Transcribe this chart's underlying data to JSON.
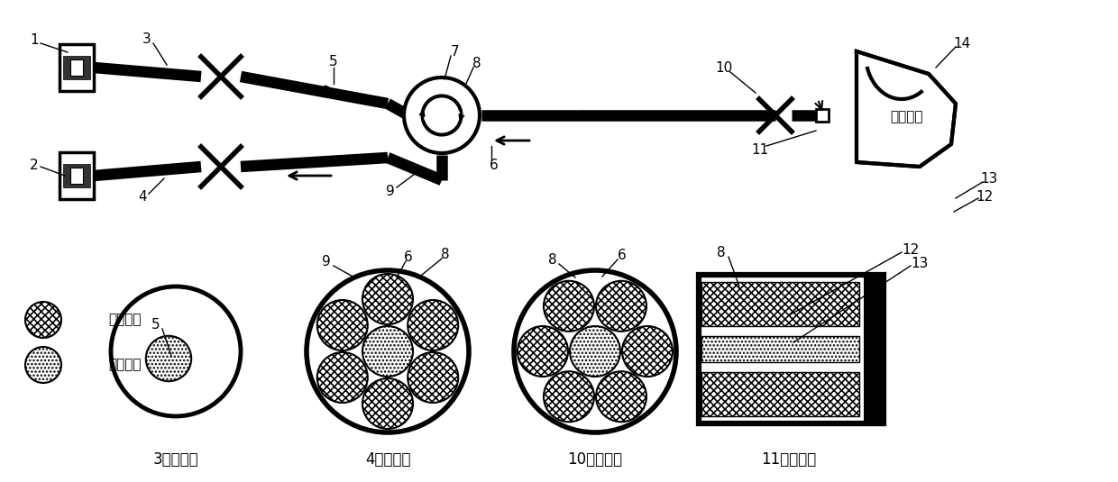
{
  "bg_color": "#ffffff",
  "lc": "#000000",
  "lw": 2.0,
  "tlw": 9,
  "blade_text": "叶片端面",
  "legend_single": "单模光纤",
  "legend_multi": "多模光纤",
  "labels_bottom": [
    "3的剪面图",
    "4的剪面图",
    "10的剪面图",
    "11的剪面图"
  ]
}
